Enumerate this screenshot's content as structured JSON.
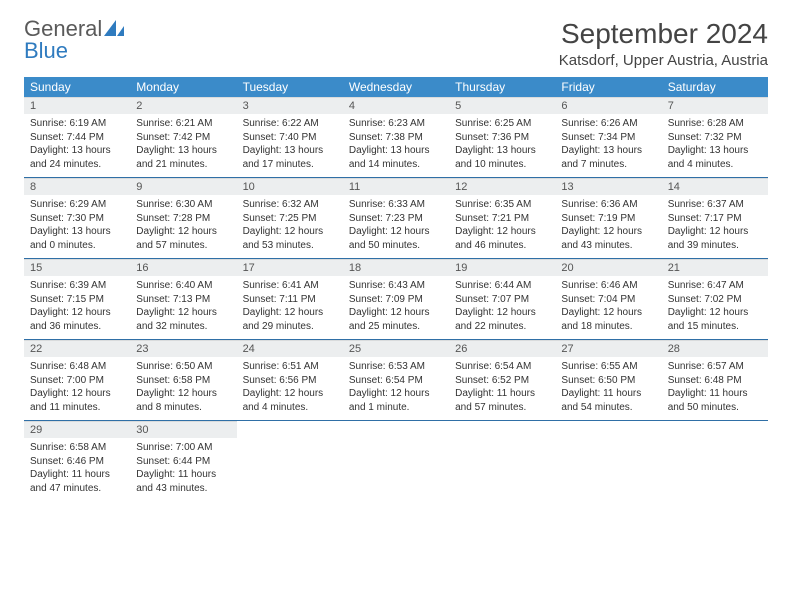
{
  "logo": {
    "text1": "General",
    "text2": "Blue",
    "color1": "#5a5a5a",
    "color2": "#2f7bbf",
    "icon_color": "#2f7bbf"
  },
  "title": "September 2024",
  "location": "Katsdorf, Upper Austria, Austria",
  "header_bg": "#3b8bc9",
  "header_fg": "#ffffff",
  "dnum_bg": "#eceeef",
  "divider_color": "#2f6fa6",
  "dows": [
    "Sunday",
    "Monday",
    "Tuesday",
    "Wednesday",
    "Thursday",
    "Friday",
    "Saturday"
  ],
  "weeks": [
    [
      {
        "n": "1",
        "sr": "Sunrise: 6:19 AM",
        "ss": "Sunset: 7:44 PM",
        "dl": "Daylight: 13 hours and 24 minutes."
      },
      {
        "n": "2",
        "sr": "Sunrise: 6:21 AM",
        "ss": "Sunset: 7:42 PM",
        "dl": "Daylight: 13 hours and 21 minutes."
      },
      {
        "n": "3",
        "sr": "Sunrise: 6:22 AM",
        "ss": "Sunset: 7:40 PM",
        "dl": "Daylight: 13 hours and 17 minutes."
      },
      {
        "n": "4",
        "sr": "Sunrise: 6:23 AM",
        "ss": "Sunset: 7:38 PM",
        "dl": "Daylight: 13 hours and 14 minutes."
      },
      {
        "n": "5",
        "sr": "Sunrise: 6:25 AM",
        "ss": "Sunset: 7:36 PM",
        "dl": "Daylight: 13 hours and 10 minutes."
      },
      {
        "n": "6",
        "sr": "Sunrise: 6:26 AM",
        "ss": "Sunset: 7:34 PM",
        "dl": "Daylight: 13 hours and 7 minutes."
      },
      {
        "n": "7",
        "sr": "Sunrise: 6:28 AM",
        "ss": "Sunset: 7:32 PM",
        "dl": "Daylight: 13 hours and 4 minutes."
      }
    ],
    [
      {
        "n": "8",
        "sr": "Sunrise: 6:29 AM",
        "ss": "Sunset: 7:30 PM",
        "dl": "Daylight: 13 hours and 0 minutes."
      },
      {
        "n": "9",
        "sr": "Sunrise: 6:30 AM",
        "ss": "Sunset: 7:28 PM",
        "dl": "Daylight: 12 hours and 57 minutes."
      },
      {
        "n": "10",
        "sr": "Sunrise: 6:32 AM",
        "ss": "Sunset: 7:25 PM",
        "dl": "Daylight: 12 hours and 53 minutes."
      },
      {
        "n": "11",
        "sr": "Sunrise: 6:33 AM",
        "ss": "Sunset: 7:23 PM",
        "dl": "Daylight: 12 hours and 50 minutes."
      },
      {
        "n": "12",
        "sr": "Sunrise: 6:35 AM",
        "ss": "Sunset: 7:21 PM",
        "dl": "Daylight: 12 hours and 46 minutes."
      },
      {
        "n": "13",
        "sr": "Sunrise: 6:36 AM",
        "ss": "Sunset: 7:19 PM",
        "dl": "Daylight: 12 hours and 43 minutes."
      },
      {
        "n": "14",
        "sr": "Sunrise: 6:37 AM",
        "ss": "Sunset: 7:17 PM",
        "dl": "Daylight: 12 hours and 39 minutes."
      }
    ],
    [
      {
        "n": "15",
        "sr": "Sunrise: 6:39 AM",
        "ss": "Sunset: 7:15 PM",
        "dl": "Daylight: 12 hours and 36 minutes."
      },
      {
        "n": "16",
        "sr": "Sunrise: 6:40 AM",
        "ss": "Sunset: 7:13 PM",
        "dl": "Daylight: 12 hours and 32 minutes."
      },
      {
        "n": "17",
        "sr": "Sunrise: 6:41 AM",
        "ss": "Sunset: 7:11 PM",
        "dl": "Daylight: 12 hours and 29 minutes."
      },
      {
        "n": "18",
        "sr": "Sunrise: 6:43 AM",
        "ss": "Sunset: 7:09 PM",
        "dl": "Daylight: 12 hours and 25 minutes."
      },
      {
        "n": "19",
        "sr": "Sunrise: 6:44 AM",
        "ss": "Sunset: 7:07 PM",
        "dl": "Daylight: 12 hours and 22 minutes."
      },
      {
        "n": "20",
        "sr": "Sunrise: 6:46 AM",
        "ss": "Sunset: 7:04 PM",
        "dl": "Daylight: 12 hours and 18 minutes."
      },
      {
        "n": "21",
        "sr": "Sunrise: 6:47 AM",
        "ss": "Sunset: 7:02 PM",
        "dl": "Daylight: 12 hours and 15 minutes."
      }
    ],
    [
      {
        "n": "22",
        "sr": "Sunrise: 6:48 AM",
        "ss": "Sunset: 7:00 PM",
        "dl": "Daylight: 12 hours and 11 minutes."
      },
      {
        "n": "23",
        "sr": "Sunrise: 6:50 AM",
        "ss": "Sunset: 6:58 PM",
        "dl": "Daylight: 12 hours and 8 minutes."
      },
      {
        "n": "24",
        "sr": "Sunrise: 6:51 AM",
        "ss": "Sunset: 6:56 PM",
        "dl": "Daylight: 12 hours and 4 minutes."
      },
      {
        "n": "25",
        "sr": "Sunrise: 6:53 AM",
        "ss": "Sunset: 6:54 PM",
        "dl": "Daylight: 12 hours and 1 minute."
      },
      {
        "n": "26",
        "sr": "Sunrise: 6:54 AM",
        "ss": "Sunset: 6:52 PM",
        "dl": "Daylight: 11 hours and 57 minutes."
      },
      {
        "n": "27",
        "sr": "Sunrise: 6:55 AM",
        "ss": "Sunset: 6:50 PM",
        "dl": "Daylight: 11 hours and 54 minutes."
      },
      {
        "n": "28",
        "sr": "Sunrise: 6:57 AM",
        "ss": "Sunset: 6:48 PM",
        "dl": "Daylight: 11 hours and 50 minutes."
      }
    ],
    [
      {
        "n": "29",
        "sr": "Sunrise: 6:58 AM",
        "ss": "Sunset: 6:46 PM",
        "dl": "Daylight: 11 hours and 47 minutes."
      },
      {
        "n": "30",
        "sr": "Sunrise: 7:00 AM",
        "ss": "Sunset: 6:44 PM",
        "dl": "Daylight: 11 hours and 43 minutes."
      },
      {
        "empty": true
      },
      {
        "empty": true
      },
      {
        "empty": true
      },
      {
        "empty": true
      },
      {
        "empty": true
      }
    ]
  ]
}
